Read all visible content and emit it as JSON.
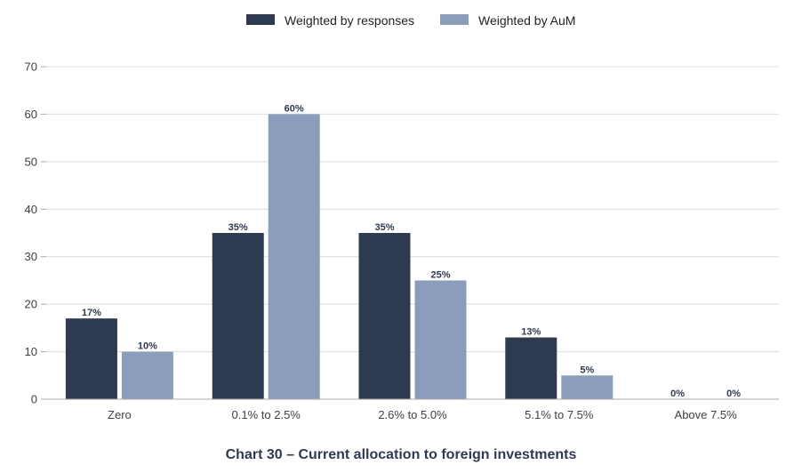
{
  "chart_data": {
    "type": "bar",
    "title": "Chart 30 – Current allocation to foreign investments",
    "xlabel": "",
    "ylabel": "",
    "ylim": [
      0,
      70
    ],
    "yticks": [
      0,
      10,
      20,
      30,
      40,
      50,
      60,
      70
    ],
    "grid": true,
    "legend_position": "top-center",
    "categories": [
      "Zero",
      "0.1% to 2.5%",
      "2.6% to 5.0%",
      "5.1% to 7.5%",
      "Above 7.5%"
    ],
    "series": [
      {
        "name": "Weighted by responses",
        "color": "#2e3a50",
        "values": [
          17,
          35,
          35,
          13,
          0
        ],
        "labels": [
          "17%",
          "35%",
          "35%",
          "13%",
          "0%"
        ]
      },
      {
        "name": "Weighted by AuM",
        "color": "#8a9dbb",
        "values": [
          10,
          60,
          25,
          5,
          0
        ],
        "labels": [
          "10%",
          "60%",
          "25%",
          "5%",
          "0%"
        ]
      }
    ]
  }
}
